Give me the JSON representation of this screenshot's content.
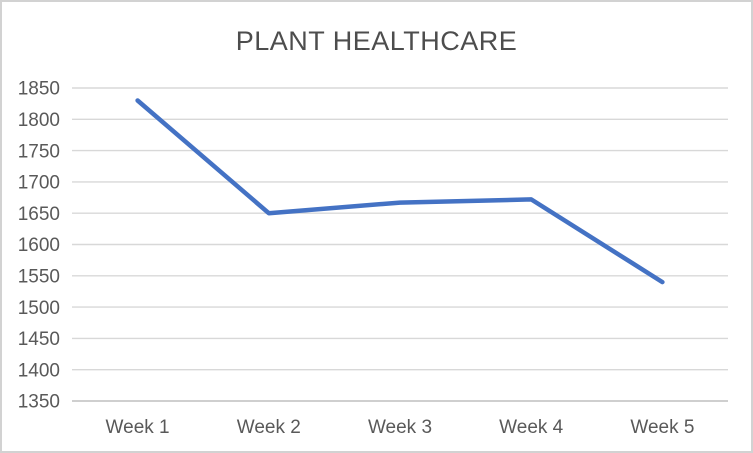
{
  "window": {
    "background": "#ffffff",
    "border_color": "#d2d2d2"
  },
  "chart_data": {
    "type": "line",
    "title": "PLANT HEALTHCARE",
    "categories": [
      "Week 1",
      "Week 2",
      "Week 3",
      "Week 4",
      "Week 5"
    ],
    "series": [
      {
        "name": "plant-healthcare",
        "values": [
          1830,
          1650,
          1667,
          1672,
          1540
        ]
      }
    ],
    "xlabel": "",
    "ylabel": "",
    "ylim": [
      1350,
      1850
    ],
    "ytick_step": 50,
    "yticks": [
      1850,
      1800,
      1750,
      1700,
      1650,
      1600,
      1550,
      1500,
      1450,
      1400,
      1350
    ],
    "grid": true,
    "legend_position": "none",
    "markers": false,
    "line_color": "#4472C4",
    "gridline_color": "#D8D8D8",
    "axis_line_color": "#BFBFBF",
    "title_color": "#4D4D4D",
    "tick_label_color": "#595959"
  }
}
